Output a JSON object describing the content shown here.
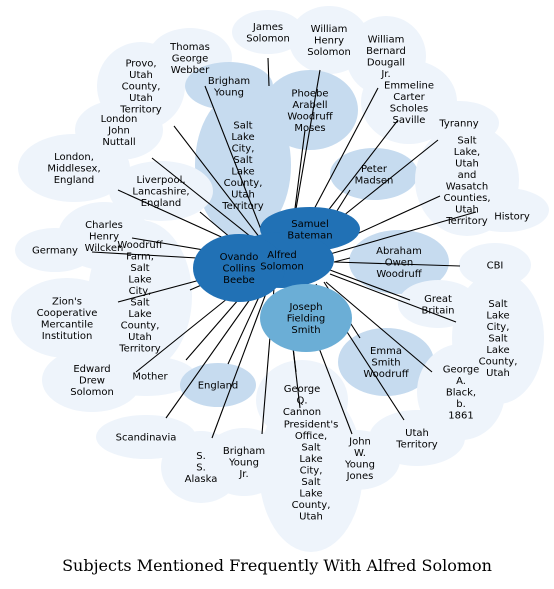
{
  "title": "Subjects Mentioned Frequently With Alfred Solomon",
  "center": {
    "id": "alfred",
    "lines": [
      "Alfred",
      "Solomon"
    ],
    "shade": "dark"
  },
  "nodes": [
    {
      "id": "james-solomon",
      "lines": [
        "James",
        "Solomon"
      ],
      "shade": "pale"
    },
    {
      "id": "william-henry-solomon",
      "lines": [
        "William",
        "Henry",
        "Solomon"
      ],
      "shade": "pale"
    },
    {
      "id": "william-bernard-dougall",
      "lines": [
        "William",
        "Bernard",
        "Dougall",
        "Jr."
      ],
      "shade": "pale"
    },
    {
      "id": "thomas-george-webber",
      "lines": [
        "Thomas",
        "George",
        "Webber"
      ],
      "shade": "pale"
    },
    {
      "id": "provo",
      "lines": [
        "Provo,",
        "Utah",
        "County,",
        "Utah",
        "Territory"
      ],
      "shade": "pale"
    },
    {
      "id": "brigham-young",
      "lines": [
        "Brigham",
        "Young"
      ],
      "shade": "light"
    },
    {
      "id": "phoebe-arabell-woodruff-moses",
      "lines": [
        "Phoebe",
        "Arabell",
        "Woodruff",
        "Moses"
      ],
      "shade": "light"
    },
    {
      "id": "emmeline-scholes-saville",
      "lines": [
        "Emmeline",
        "Carter",
        "Scholes",
        "Saville"
      ],
      "shade": "pale"
    },
    {
      "id": "tyranny",
      "lines": [
        "Tyranny"
      ],
      "shade": "pale"
    },
    {
      "id": "london-john-nuttall",
      "lines": [
        "London",
        "John",
        "Nuttall"
      ],
      "shade": "pale"
    },
    {
      "id": "salt-lake-city-territory",
      "lines": [
        "Salt",
        "Lake",
        "City,",
        "Salt",
        "Lake",
        "County,",
        "Utah",
        "Territory"
      ],
      "shade": "light"
    },
    {
      "id": "peter-madsen",
      "lines": [
        "Peter",
        "Madsen"
      ],
      "shade": "light"
    },
    {
      "id": "wasatch-counties",
      "lines": [
        "Salt",
        "Lake,",
        "Utah",
        "and",
        "Wasatch",
        "Counties,",
        "Utah",
        "Territory"
      ],
      "shade": "pale"
    },
    {
      "id": "history",
      "lines": [
        "History"
      ],
      "shade": "pale"
    },
    {
      "id": "london-middlesex",
      "lines": [
        "London,",
        "Middlesex,",
        "England"
      ],
      "shade": "pale"
    },
    {
      "id": "liverpool",
      "lines": [
        "Liverpool,",
        "Lancashire,",
        "England"
      ],
      "shade": "pale"
    },
    {
      "id": "samuel-bateman",
      "lines": [
        "Samuel",
        "Bateman"
      ],
      "shade": "dark"
    },
    {
      "id": "charles-henry-wilcken",
      "lines": [
        "Charles",
        "Henry",
        "Wilcken"
      ],
      "shade": "pale"
    },
    {
      "id": "germany",
      "lines": [
        "Germany"
      ],
      "shade": "pale"
    },
    {
      "id": "woodruff-farm",
      "lines": [
        "Woodruff",
        "Farm,",
        "Salt",
        "Lake",
        "City,",
        "Salt",
        "Lake",
        "County,",
        "Utah",
        "Territory"
      ],
      "shade": "pale"
    },
    {
      "id": "ovando-collins-beebe",
      "lines": [
        "Ovando",
        "Collins",
        "Beebe"
      ],
      "shade": "dark"
    },
    {
      "id": "abraham-owen-woodruff",
      "lines": [
        "Abraham",
        "Owen",
        "Woodruff"
      ],
      "shade": "light"
    },
    {
      "id": "cbi",
      "lines": [
        "CBI"
      ],
      "shade": "pale"
    },
    {
      "id": "zcmi",
      "lines": [
        "Zion's",
        "Cooperative",
        "Mercantile",
        "Institution"
      ],
      "shade": "pale"
    },
    {
      "id": "joseph-fielding-smith",
      "lines": [
        "Joseph",
        "Fielding",
        "Smith"
      ],
      "shade": "medium"
    },
    {
      "id": "great-britain",
      "lines": [
        "Great",
        "Britain"
      ],
      "shade": "pale"
    },
    {
      "id": "salt-lake-city-county",
      "lines": [
        "Salt",
        "Lake",
        "City,",
        "Salt",
        "Lake",
        "County,",
        "Utah"
      ],
      "shade": "pale"
    },
    {
      "id": "emma-smith-woodruff",
      "lines": [
        "Emma",
        "Smith",
        "Woodruff"
      ],
      "shade": "light"
    },
    {
      "id": "edward-drew-solomon",
      "lines": [
        "Edward",
        "Drew",
        "Solomon"
      ],
      "shade": "pale"
    },
    {
      "id": "george-a-black",
      "lines": [
        "George",
        "A.",
        "Black,",
        "b.",
        "1861"
      ],
      "shade": "pale"
    },
    {
      "id": "mother",
      "lines": [
        "Mother"
      ],
      "shade": "pale"
    },
    {
      "id": "england",
      "lines": [
        "England"
      ],
      "shade": "light"
    },
    {
      "id": "george-q-cannon",
      "lines": [
        "George",
        "Q.",
        "Cannon"
      ],
      "shade": "pale"
    },
    {
      "id": "scandinavia",
      "lines": [
        "Scandinavia"
      ],
      "shade": "pale"
    },
    {
      "id": "utah-territory",
      "lines": [
        "Utah",
        "Territory"
      ],
      "shade": "pale"
    },
    {
      "id": "presidents-office",
      "lines": [
        "President's",
        "Office,",
        "Salt",
        "Lake",
        "City,",
        "Salt",
        "Lake",
        "County,",
        "Utah"
      ],
      "shade": "pale"
    },
    {
      "id": "brigham-young-jr",
      "lines": [
        "Brigham",
        "Young",
        "Jr."
      ],
      "shade": "pale"
    },
    {
      "id": "ss-alaska",
      "lines": [
        "S.",
        "S.",
        "Alaska"
      ],
      "shade": "pale"
    },
    {
      "id": "john-w-young",
      "lines": [
        "John",
        "W.",
        "Young",
        "Jones"
      ],
      "shade": "pale"
    }
  ],
  "colors": {
    "dark": "#2171b5",
    "medium": "#6baed6",
    "light": "#c6dbef",
    "pale": "#eef4fb",
    "edge": "#000000",
    "text": "#000000"
  }
}
